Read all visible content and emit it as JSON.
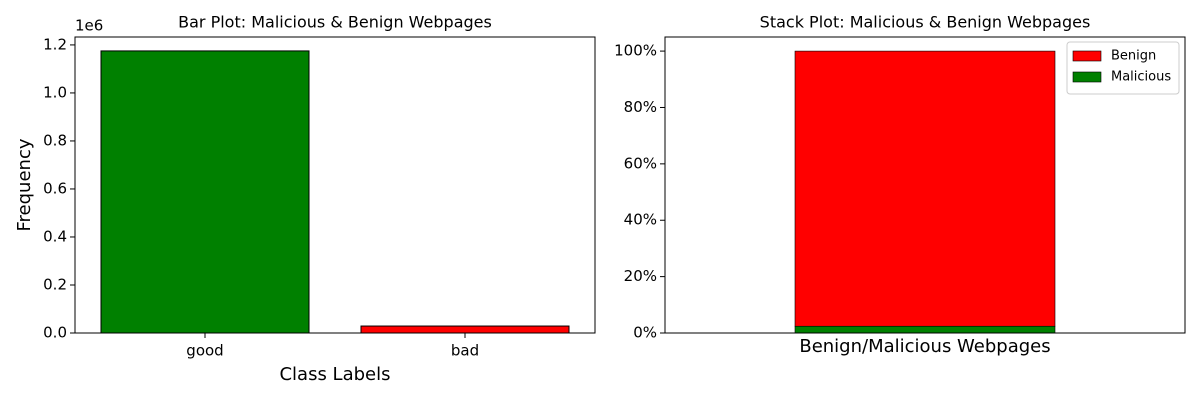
{
  "chart_data": [
    {
      "type": "bar",
      "title": "Bar Plot: Malicious & Benign Webpages",
      "x_label": "Class Labels",
      "y_label": "Frequency",
      "offset_text": "1e6",
      "categories": [
        "good",
        "bad"
      ],
      "values": [
        1175000,
        29000
      ],
      "colors": [
        "#008000",
        "#ff0000"
      ],
      "ylim": [
        0,
        1233000
      ],
      "yticks": [
        {
          "value": 0,
          "label": "0.0"
        },
        {
          "value": 200000,
          "label": "0.2"
        },
        {
          "value": 400000,
          "label": "0.4"
        },
        {
          "value": 600000,
          "label": "0.6"
        },
        {
          "value": 800000,
          "label": "0.8"
        },
        {
          "value": 1000000,
          "label": "1.0"
        },
        {
          "value": 1200000,
          "label": "1.2"
        }
      ],
      "grid": false
    },
    {
      "type": "stacked_bar",
      "title": "Stack Plot: Malicious & Benign Webpages",
      "x_label": "Benign/Malicious Webpages",
      "categories": [
        null
      ],
      "series": [
        {
          "name": "Malicious",
          "color": "#008000",
          "values": [
            2.4
          ]
        },
        {
          "name": "Benign",
          "color": "#ff0000",
          "values": [
            97.6
          ]
        }
      ],
      "ylim": [
        0,
        105
      ],
      "yticks": [
        {
          "value": 0,
          "label": "0%"
        },
        {
          "value": 20,
          "label": "20%"
        },
        {
          "value": 40,
          "label": "40%"
        },
        {
          "value": 60,
          "label": "60%"
        },
        {
          "value": 80,
          "label": "80%"
        },
        {
          "value": 100,
          "label": "100%"
        }
      ],
      "legend": "upper right",
      "grid": false
    }
  ]
}
